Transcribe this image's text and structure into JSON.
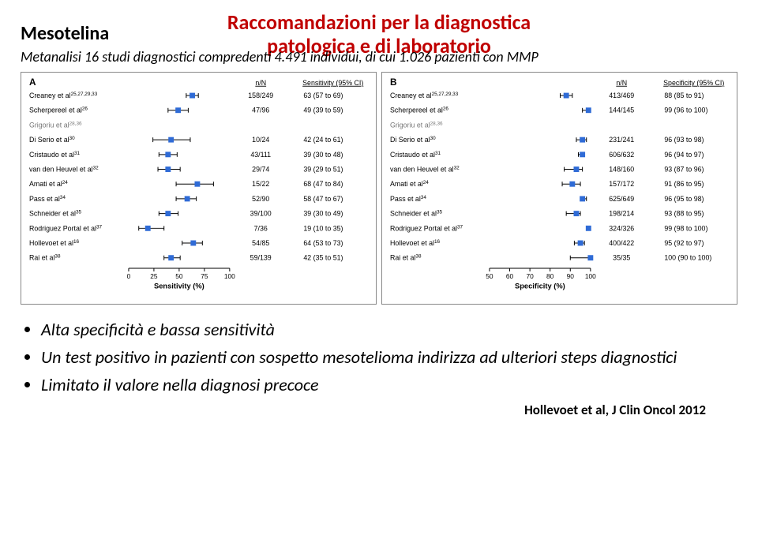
{
  "title_line1": "Raccomandazioni per la diagnostica",
  "title_line2": "patologica e di laboratorio",
  "title_color": "#c00000",
  "heading": "Mesotelina",
  "subtitle": "Metanalisi 16 studi diagnostici compredenti 4.491 individui, di cui 1.026 pazienti con  MMP",
  "bullets": [
    "Alta specificità e bassa sensitività",
    "Un test positivo in pazienti con sospetto mesotelioma indirizza ad ulteriori steps diagnostici",
    "Limitato il valore nella diagnosi precoce"
  ],
  "citation": "Hollevoet  et al, J Clin Oncol 2012",
  "panelA": {
    "label": "A",
    "col_headers": [
      "n/N",
      "Sensitivity (95% CI)"
    ],
    "xaxis_label": "Sensitivity (%)",
    "xmin": 0,
    "xmax": 100,
    "xticks": [
      0,
      25,
      50,
      75,
      100
    ],
    "marker_color": "#2f6bd6",
    "rows": [
      {
        "study": "Creaney et al",
        "sup": "25,27,29,33",
        "nN": "158/249",
        "pt": 63,
        "lo": 57,
        "hi": 69,
        "ci": "63 (57 to 69)"
      },
      {
        "study": "Scherpereel et al",
        "sup": "26",
        "nN": "47/96",
        "pt": 49,
        "lo": 39,
        "hi": 59,
        "ci": "49 (39 to 59)"
      },
      {
        "study": "Grigoriu et al",
        "sup": "28,36",
        "nN": "",
        "pt": null,
        "lo": null,
        "hi": null,
        "ci": "",
        "light": true
      },
      {
        "study": "Di Serio et al",
        "sup": "30",
        "nN": "10/24",
        "pt": 42,
        "lo": 24,
        "hi": 61,
        "ci": "42 (24 to 61)"
      },
      {
        "study": "Cristaudo et al",
        "sup": "31",
        "nN": "43/111",
        "pt": 39,
        "lo": 30,
        "hi": 48,
        "ci": "39 (30 to 48)"
      },
      {
        "study": "van den Heuvel et al",
        "sup": "32",
        "nN": "29/74",
        "pt": 39,
        "lo": 29,
        "hi": 51,
        "ci": "39 (29 to 51)"
      },
      {
        "study": "Amati et al",
        "sup": "24",
        "nN": "15/22",
        "pt": 68,
        "lo": 47,
        "hi": 84,
        "ci": "68 (47 to 84)"
      },
      {
        "study": "Pass et al",
        "sup": "34",
        "nN": "52/90",
        "pt": 58,
        "lo": 47,
        "hi": 67,
        "ci": "58 (47 to 67)"
      },
      {
        "study": "Schneider et al",
        "sup": "35",
        "nN": "39/100",
        "pt": 39,
        "lo": 30,
        "hi": 49,
        "ci": "39 (30 to 49)"
      },
      {
        "study": "Rodriguez Portal et al",
        "sup": "37",
        "nN": "7/36",
        "pt": 19,
        "lo": 10,
        "hi": 35,
        "ci": "19 (10 to 35)"
      },
      {
        "study": "Hollevoet et al",
        "sup": "16",
        "nN": "54/85",
        "pt": 64,
        "lo": 53,
        "hi": 73,
        "ci": "64 (53 to 73)"
      },
      {
        "study": "Rai et al",
        "sup": "38",
        "nN": "59/139",
        "pt": 42,
        "lo": 35,
        "hi": 51,
        "ci": "42 (35 to 51)"
      }
    ]
  },
  "panelB": {
    "label": "B",
    "col_headers": [
      "n/N",
      "Specificity (95% CI)"
    ],
    "xaxis_label": "Specificity (%)",
    "xmin": 50,
    "xmax": 100,
    "xticks": [
      50,
      60,
      70,
      80,
      90,
      100
    ],
    "marker_color": "#2f6bd6",
    "rows": [
      {
        "study": "Creaney et al",
        "sup": "25,27,29,33",
        "nN": "413/469",
        "pt": 88,
        "lo": 85,
        "hi": 91,
        "ci": "88 (85 to 91)"
      },
      {
        "study": "Scherpereel et al",
        "sup": "26",
        "nN": "144/145",
        "pt": 99,
        "lo": 96,
        "hi": 100,
        "ci": "99 (96 to 100)"
      },
      {
        "study": "Grigoriu et al",
        "sup": "28,36",
        "nN": "",
        "pt": null,
        "lo": null,
        "hi": null,
        "ci": "",
        "light": true
      },
      {
        "study": "Di Serio et al",
        "sup": "30",
        "nN": "231/241",
        "pt": 96,
        "lo": 93,
        "hi": 98,
        "ci": "96 (93 to 98)"
      },
      {
        "study": "Cristaudo et al",
        "sup": "31",
        "nN": "606/632",
        "pt": 96,
        "lo": 94,
        "hi": 97,
        "ci": "96 (94 to 97)"
      },
      {
        "study": "van den Heuvel et al",
        "sup": "32",
        "nN": "148/160",
        "pt": 93,
        "lo": 87,
        "hi": 96,
        "ci": "93 (87 to 96)"
      },
      {
        "study": "Amati et al",
        "sup": "24",
        "nN": "157/172",
        "pt": 91,
        "lo": 86,
        "hi": 95,
        "ci": "91 (86 to 95)"
      },
      {
        "study": "Pass et al",
        "sup": "34",
        "nN": "625/649",
        "pt": 96,
        "lo": 95,
        "hi": 98,
        "ci": "96 (95 to 98)"
      },
      {
        "study": "Schneider et al",
        "sup": "35",
        "nN": "198/214",
        "pt": 93,
        "lo": 88,
        "hi": 95,
        "ci": "93 (88 to 95)"
      },
      {
        "study": "Rodriguez Portal et al",
        "sup": "37",
        "nN": "324/326",
        "pt": 99,
        "lo": 98,
        "hi": 100,
        "ci": "99 (98 to 100)"
      },
      {
        "study": "Hollevoet et al",
        "sup": "16",
        "nN": "400/422",
        "pt": 95,
        "lo": 92,
        "hi": 97,
        "ci": "95 (92 to 97)"
      },
      {
        "study": "Rai et al",
        "sup": "38",
        "nN": "35/35",
        "pt": 100,
        "lo": 90,
        "hi": 100,
        "ci": "100 (90 to 100)"
      }
    ]
  }
}
